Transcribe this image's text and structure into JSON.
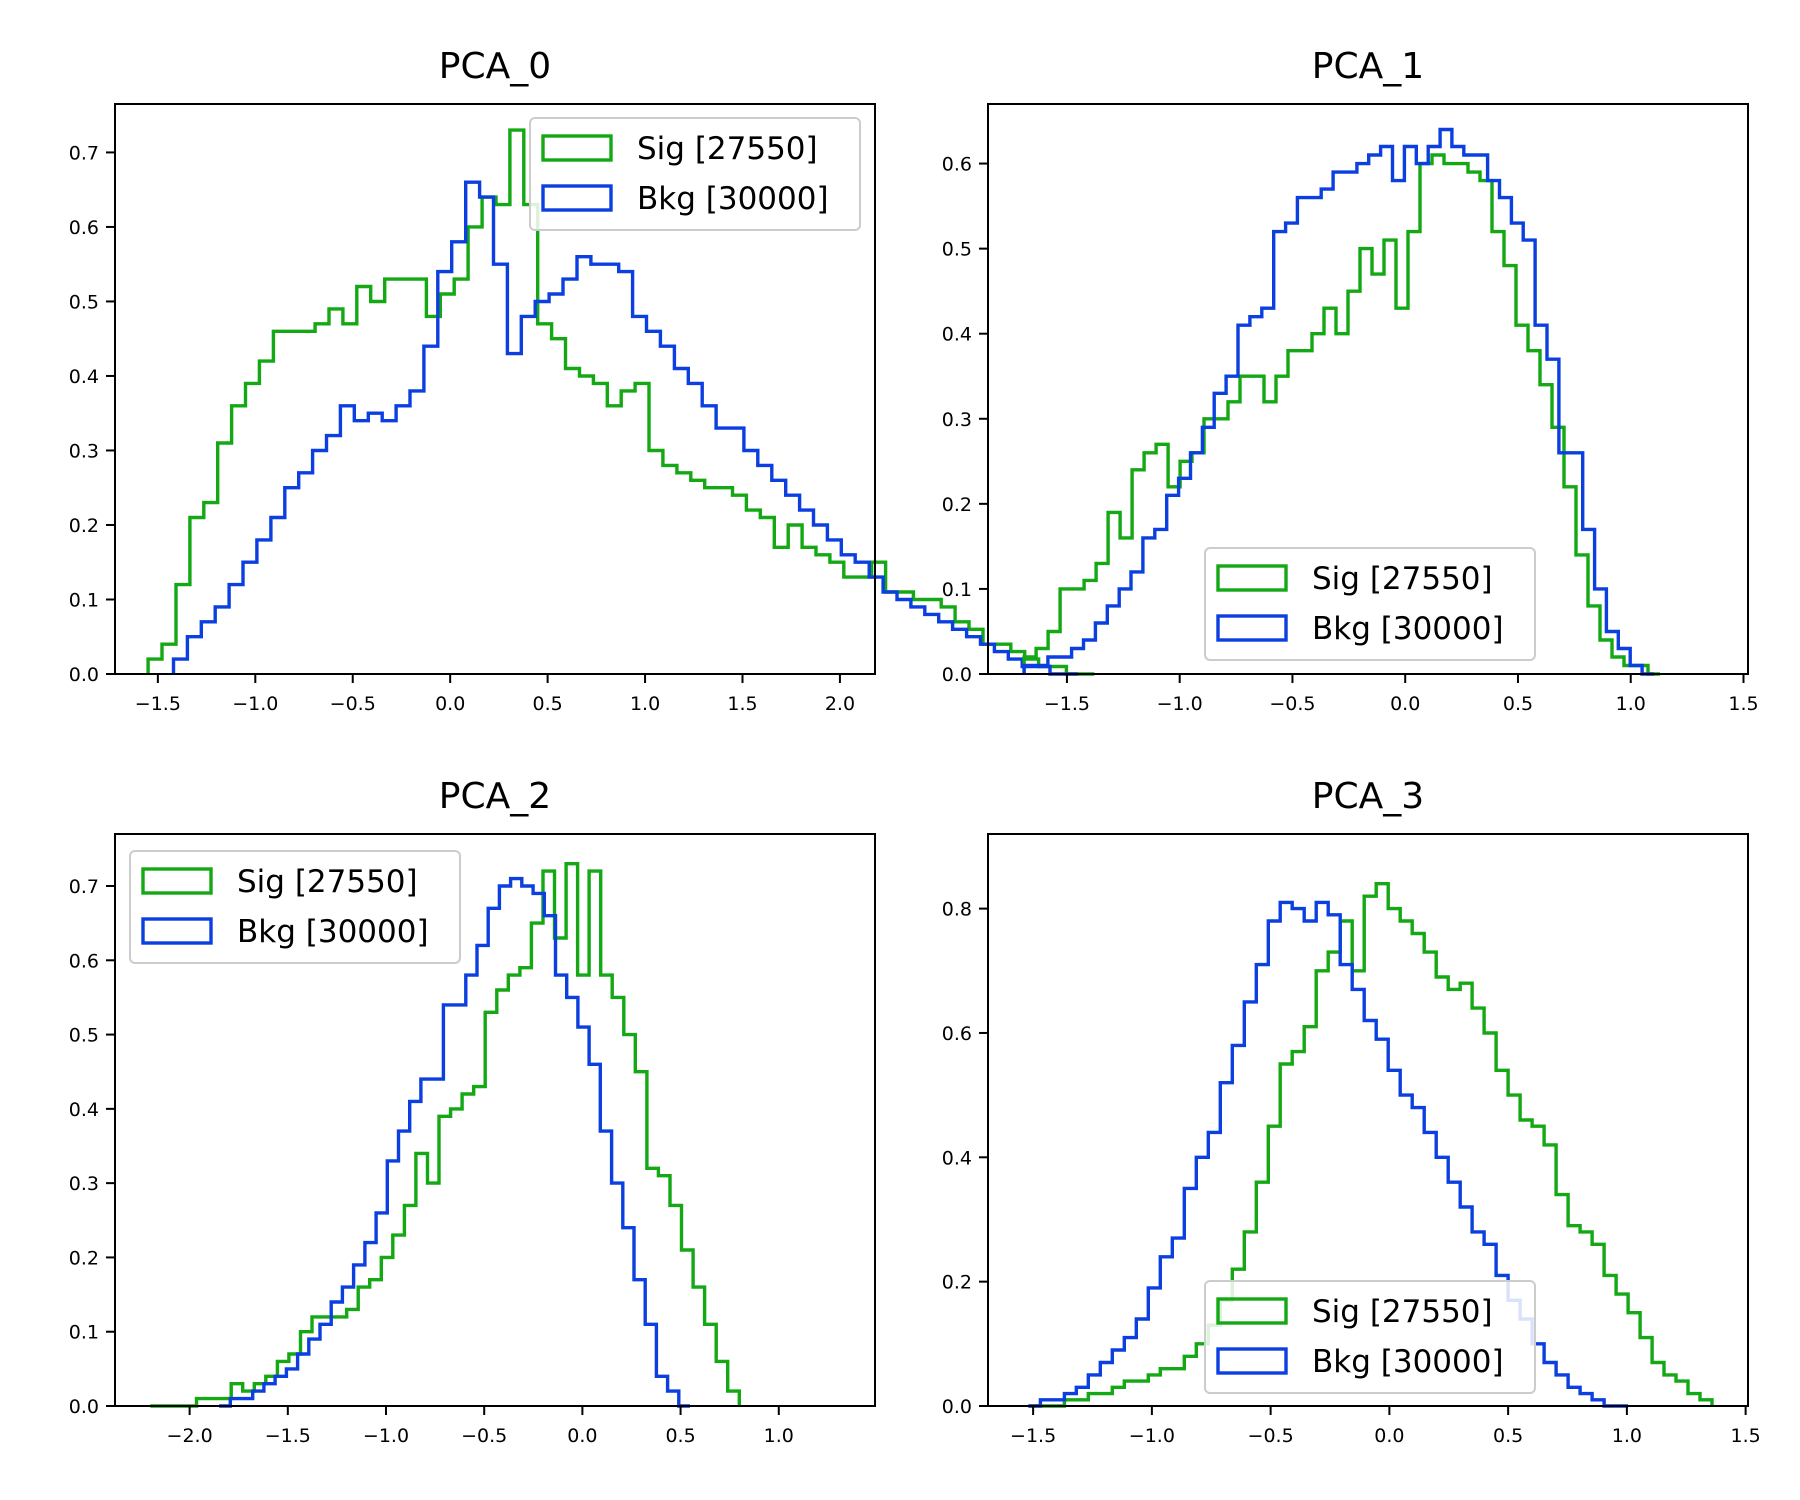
{
  "colors": {
    "sig": "#14a814",
    "bkg": "#0c3fe0",
    "axes": "#000000",
    "legend_border": "#cccccc"
  },
  "chart_data": [
    {
      "type": "histogram",
      "title": "PCA_0",
      "xlim": [
        -1.72,
        2.18
      ],
      "ylim": [
        0,
        0.765
      ],
      "xticks": [
        -1.5,
        -1.0,
        -0.5,
        0.0,
        0.5,
        1.0,
        1.5,
        2.0
      ],
      "xtick_labels": [
        "−1.5",
        "−1.0",
        "−0.5",
        "0.0",
        "0.5",
        "1.0",
        "1.5",
        "2.0"
      ],
      "yticks": [
        0.0,
        0.1,
        0.2,
        0.3,
        0.4,
        0.5,
        0.6,
        0.7
      ],
      "ytick_labels": [
        "0.0",
        "0.1",
        "0.2",
        "0.3",
        "0.4",
        "0.5",
        "0.6",
        "0.7"
      ],
      "legend_position": "upper right",
      "series": [
        {
          "name": "Sig [27550]",
          "color": "#14a814",
          "x_start": -1.55,
          "bin_width": 0.0714,
          "values": [
            0.02,
            0.04,
            0.12,
            0.21,
            0.23,
            0.31,
            0.36,
            0.39,
            0.42,
            0.46,
            0.46,
            0.46,
            0.47,
            0.49,
            0.47,
            0.52,
            0.5,
            0.53,
            0.53,
            0.53,
            0.48,
            0.51,
            0.53,
            0.6,
            0.64,
            0.63,
            0.73,
            0.63,
            0.47,
            0.45,
            0.41,
            0.4,
            0.39,
            0.36,
            0.38,
            0.39,
            0.3,
            0.28,
            0.27,
            0.26,
            0.25,
            0.25,
            0.24,
            0.22,
            0.21,
            0.17,
            0.2,
            0.17,
            0.16,
            0.15,
            0.13,
            0.13,
            0.15,
            0.11,
            0.11,
            0.1,
            0.1,
            0.09,
            0.07,
            0.06,
            0.04,
            0.04,
            0.03,
            0.02,
            0.01,
            0.01,
            0.0,
            0.0
          ]
        },
        {
          "name": "Bkg [30000]",
          "color": "#0c3fe0",
          "x_start": -1.42,
          "bin_width": 0.0714,
          "values": [
            0.02,
            0.05,
            0.07,
            0.09,
            0.12,
            0.15,
            0.18,
            0.21,
            0.25,
            0.27,
            0.3,
            0.32,
            0.36,
            0.34,
            0.35,
            0.34,
            0.36,
            0.38,
            0.44,
            0.54,
            0.58,
            0.66,
            0.64,
            0.55,
            0.43,
            0.48,
            0.5,
            0.51,
            0.53,
            0.56,
            0.55,
            0.55,
            0.54,
            0.48,
            0.46,
            0.44,
            0.41,
            0.39,
            0.36,
            0.33,
            0.33,
            0.3,
            0.28,
            0.26,
            0.24,
            0.22,
            0.2,
            0.18,
            0.16,
            0.15,
            0.13,
            0.11,
            0.1,
            0.09,
            0.08,
            0.07,
            0.06,
            0.05,
            0.04,
            0.03,
            0.02,
            0.01,
            0.01,
            0.0,
            0.0
          ]
        }
      ]
    },
    {
      "type": "histogram",
      "title": "PCA_1",
      "xlim": [
        -1.85,
        1.52
      ],
      "ylim": [
        0,
        0.67
      ],
      "xticks": [
        -1.5,
        -1.0,
        -0.5,
        0.0,
        0.5,
        1.0,
        1.5
      ],
      "xtick_labels": [
        "−1.5",
        "−1.0",
        "−0.5",
        "0.0",
        "0.5",
        "1.0",
        "1.5"
      ],
      "yticks": [
        0.0,
        0.1,
        0.2,
        0.3,
        0.4,
        0.5,
        0.6
      ],
      "ytick_labels": [
        "0.0",
        "0.1",
        "0.2",
        "0.3",
        "0.4",
        "0.5",
        "0.6"
      ],
      "legend_position": "lower center",
      "series": [
        {
          "name": "Sig [27550]",
          "color": "#14a814",
          "x_start": -1.69,
          "bin_width": 0.0532,
          "values": [
            0.02,
            0.03,
            0.05,
            0.1,
            0.1,
            0.11,
            0.13,
            0.19,
            0.16,
            0.24,
            0.26,
            0.27,
            0.22,
            0.25,
            0.26,
            0.3,
            0.3,
            0.32,
            0.35,
            0.35,
            0.32,
            0.35,
            0.38,
            0.38,
            0.4,
            0.43,
            0.4,
            0.45,
            0.5,
            0.47,
            0.51,
            0.43,
            0.52,
            0.6,
            0.61,
            0.6,
            0.6,
            0.59,
            0.58,
            0.52,
            0.48,
            0.41,
            0.38,
            0.34,
            0.29,
            0.22,
            0.14,
            0.08,
            0.04,
            0.02,
            0.01,
            0.01,
            0.0
          ]
        },
        {
          "name": "Bkg [30000]",
          "color": "#0c3fe0",
          "x_start": -1.69,
          "bin_width": 0.0527,
          "values": [
            0.01,
            0.01,
            0.02,
            0.02,
            0.03,
            0.04,
            0.06,
            0.08,
            0.1,
            0.12,
            0.16,
            0.17,
            0.21,
            0.23,
            0.26,
            0.29,
            0.33,
            0.35,
            0.41,
            0.42,
            0.43,
            0.52,
            0.53,
            0.56,
            0.56,
            0.57,
            0.59,
            0.59,
            0.6,
            0.61,
            0.62,
            0.58,
            0.62,
            0.6,
            0.62,
            0.64,
            0.62,
            0.61,
            0.61,
            0.58,
            0.56,
            0.53,
            0.51,
            0.41,
            0.37,
            0.26,
            0.26,
            0.17,
            0.1,
            0.05,
            0.03,
            0.01,
            0.0
          ]
        }
      ]
    },
    {
      "type": "histogram",
      "title": "PCA_2",
      "xlim": [
        -2.38,
        1.49
      ],
      "ylim": [
        0,
        0.77
      ],
      "xticks": [
        -2.0,
        -1.5,
        -1.0,
        -0.5,
        0.0,
        0.5,
        1.0
      ],
      "xtick_labels": [
        "−2.0",
        "−1.5",
        "−1.0",
        "−0.5",
        "0.0",
        "0.5",
        "1.0"
      ],
      "yticks": [
        0.0,
        0.1,
        0.2,
        0.3,
        0.4,
        0.5,
        0.6,
        0.7
      ],
      "ytick_labels": [
        "0.0",
        "0.1",
        "0.2",
        "0.3",
        "0.4",
        "0.5",
        "0.6",
        "0.7"
      ],
      "legend_position": "upper left",
      "series": [
        {
          "name": "Sig [27550]",
          "color": "#14a814",
          "x_start": -2.2,
          "bin_width": 0.0588,
          "values": [
            0.0,
            0.0,
            0.0,
            0.0,
            0.01,
            0.01,
            0.01,
            0.03,
            0.02,
            0.03,
            0.04,
            0.06,
            0.07,
            0.1,
            0.12,
            0.12,
            0.12,
            0.13,
            0.16,
            0.17,
            0.2,
            0.23,
            0.27,
            0.34,
            0.3,
            0.39,
            0.4,
            0.42,
            0.43,
            0.53,
            0.56,
            0.58,
            0.59,
            0.65,
            0.72,
            0.63,
            0.73,
            0.58,
            0.72,
            0.58,
            0.55,
            0.5,
            0.45,
            0.32,
            0.31,
            0.27,
            0.21,
            0.16,
            0.11,
            0.06,
            0.02
          ]
        },
        {
          "name": "Bkg [30000]",
          "color": "#0c3fe0",
          "x_start": -1.85,
          "bin_width": 0.0571,
          "values": [
            0.0,
            0.01,
            0.01,
            0.02,
            0.03,
            0.04,
            0.05,
            0.07,
            0.09,
            0.11,
            0.14,
            0.16,
            0.19,
            0.22,
            0.26,
            0.33,
            0.37,
            0.41,
            0.44,
            0.44,
            0.54,
            0.54,
            0.58,
            0.62,
            0.67,
            0.7,
            0.71,
            0.7,
            0.69,
            0.66,
            0.58,
            0.55,
            0.51,
            0.46,
            0.37,
            0.3,
            0.24,
            0.17,
            0.11,
            0.04,
            0.02,
            0.0
          ]
        }
      ]
    },
    {
      "type": "histogram",
      "title": "PCA_3",
      "xlim": [
        -1.69,
        1.51
      ],
      "ylim": [
        0,
        0.92
      ],
      "xticks": [
        -1.5,
        -1.0,
        -0.5,
        0.0,
        0.5,
        1.0,
        1.5
      ],
      "xtick_labels": [
        "−1.5",
        "−1.0",
        "−0.5",
        "0.0",
        "0.5",
        "1.0",
        "1.5"
      ],
      "yticks": [
        0.0,
        0.2,
        0.4,
        0.6,
        0.8
      ],
      "ytick_labels": [
        "0.0",
        "0.2",
        "0.4",
        "0.6",
        "0.8"
      ],
      "legend_position": "lower center",
      "series": [
        {
          "name": "Sig [27550]",
          "color": "#14a814",
          "x_start": -1.52,
          "bin_width": 0.0505,
          "values": [
            0.0,
            0.0,
            0.0,
            0.01,
            0.01,
            0.02,
            0.02,
            0.03,
            0.04,
            0.04,
            0.05,
            0.06,
            0.06,
            0.08,
            0.1,
            0.13,
            0.17,
            0.22,
            0.28,
            0.36,
            0.45,
            0.55,
            0.57,
            0.61,
            0.7,
            0.73,
            0.78,
            0.7,
            0.82,
            0.84,
            0.8,
            0.78,
            0.76,
            0.73,
            0.69,
            0.67,
            0.68,
            0.64,
            0.6,
            0.54,
            0.5,
            0.46,
            0.45,
            0.42,
            0.34,
            0.29,
            0.28,
            0.26,
            0.21,
            0.18,
            0.15,
            0.11,
            0.07,
            0.05,
            0.04,
            0.02,
            0.01
          ]
        },
        {
          "name": "Bkg [30000]",
          "color": "#0c3fe0",
          "x_start": -1.52,
          "bin_width": 0.0505,
          "values": [
            0.0,
            0.01,
            0.01,
            0.02,
            0.03,
            0.05,
            0.07,
            0.09,
            0.11,
            0.14,
            0.19,
            0.24,
            0.27,
            0.35,
            0.4,
            0.44,
            0.52,
            0.58,
            0.65,
            0.71,
            0.78,
            0.81,
            0.8,
            0.78,
            0.81,
            0.79,
            0.71,
            0.67,
            0.62,
            0.59,
            0.54,
            0.5,
            0.48,
            0.44,
            0.4,
            0.36,
            0.32,
            0.28,
            0.26,
            0.21,
            0.17,
            0.14,
            0.1,
            0.07,
            0.05,
            0.03,
            0.02,
            0.01,
            0.0,
            0.0
          ]
        }
      ]
    }
  ]
}
